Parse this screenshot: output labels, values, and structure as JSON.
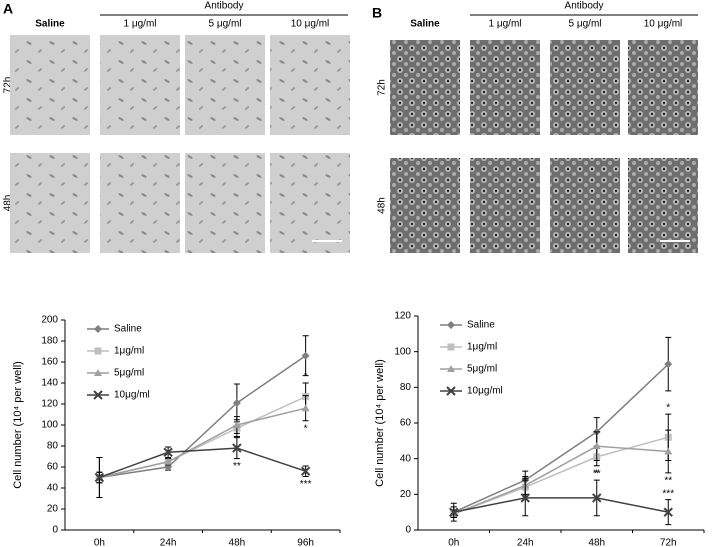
{
  "figure": {
    "panels": [
      {
        "label": "A",
        "group_label": "Antibody",
        "columns": [
          "Saline",
          "1 μg/ml",
          "5 μg/ml",
          "10 μg/ml"
        ],
        "rows": [
          "72h",
          "48h"
        ]
      },
      {
        "label": "B",
        "group_label": "Antibody",
        "columns": [
          "Saline",
          "1 μg/ml",
          "5 μg/ml",
          "10 μg/ml"
        ],
        "rows": [
          "72h",
          "48h"
        ]
      }
    ]
  },
  "chart_data": [
    {
      "type": "line",
      "ylabel": "Cell number (10⁴ per well)",
      "categories": [
        "0h",
        "24h",
        "48h",
        "96h"
      ],
      "ylim": [
        0,
        200
      ],
      "yticks": [
        0,
        20,
        40,
        60,
        80,
        100,
        120,
        140,
        160,
        180,
        200
      ],
      "series": [
        {
          "name": "Saline",
          "color": "#7f7f7f",
          "marker": "diamond",
          "values": [
            50,
            60,
            121,
            166
          ],
          "errors": [
            19,
            3,
            18,
            19
          ],
          "significance": [
            null,
            null,
            null,
            null
          ]
        },
        {
          "name": "1μg/ml",
          "color": "#bfbfbf",
          "marker": "square",
          "values": [
            50,
            65,
            97,
            127
          ],
          "errors": [
            5,
            3,
            8,
            13
          ],
          "significance": [
            null,
            null,
            null,
            "*"
          ]
        },
        {
          "name": "5μg/ml",
          "color": "#a0a0a0",
          "marker": "triangle",
          "values": [
            50,
            65,
            100,
            116
          ],
          "errors": [
            5,
            3,
            8,
            12
          ],
          "significance": [
            null,
            null,
            null,
            "*"
          ]
        },
        {
          "name": "10μg/ml",
          "color": "#404040",
          "marker": "x",
          "values": [
            50,
            74,
            78,
            56
          ],
          "errors": [
            19,
            5,
            10,
            5
          ],
          "significance": [
            null,
            null,
            "**",
            "***"
          ]
        }
      ]
    },
    {
      "type": "line",
      "ylabel": "Cell number (10⁴ per well)",
      "categories": [
        "0h",
        "24h",
        "48h",
        "72h"
      ],
      "ylim": [
        0,
        120
      ],
      "yticks": [
        0,
        20,
        40,
        60,
        80,
        100,
        120
      ],
      "series": [
        {
          "name": "Saline",
          "color": "#7f7f7f",
          "marker": "diamond",
          "values": [
            10,
            28,
            55,
            93
          ],
          "errors": [
            3,
            5,
            8,
            15
          ],
          "significance": [
            null,
            null,
            null,
            null
          ]
        },
        {
          "name": "1μg/ml",
          "color": "#bfbfbf",
          "marker": "square",
          "values": [
            9,
            24,
            41,
            52
          ],
          "errors": [
            2,
            5,
            5,
            13
          ],
          "significance": [
            null,
            null,
            "*",
            "*"
          ]
        },
        {
          "name": "5μg/ml",
          "color": "#a0a0a0",
          "marker": "triangle",
          "values": [
            9,
            25,
            47,
            44
          ],
          "errors": [
            2,
            5,
            8,
            12
          ],
          "significance": [
            null,
            null,
            null,
            "**"
          ]
        },
        {
          "name": "10μg/ml",
          "color": "#404040",
          "marker": "x",
          "values": [
            10,
            18,
            18,
            10
          ],
          "errors": [
            5,
            10,
            10,
            7
          ],
          "significance": [
            null,
            null,
            "**",
            "***"
          ]
        }
      ]
    }
  ]
}
